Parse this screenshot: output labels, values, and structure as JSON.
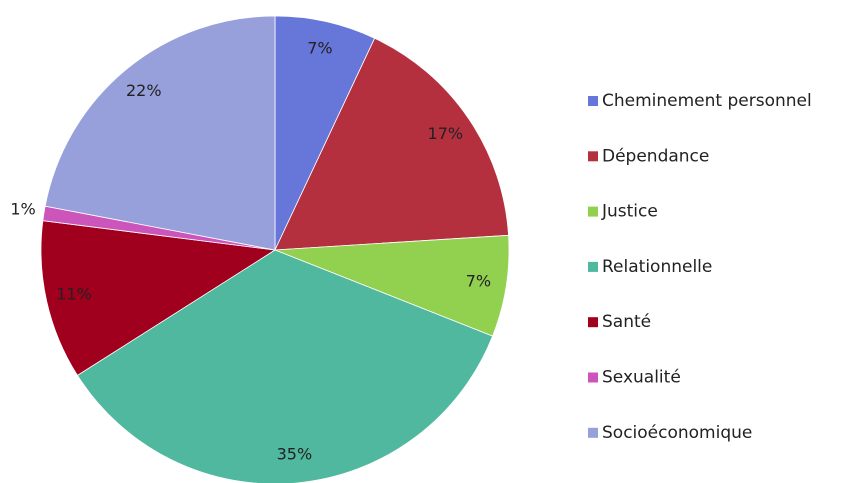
{
  "chart_data": {
    "type": "pie",
    "categories": [
      "Cheminement personnel",
      "Dépendance",
      "Justice",
      "Relationnelle",
      "Santé",
      "Sexualité",
      "Socioéconomique"
    ],
    "values": [
      7,
      17,
      7,
      35,
      11,
      1,
      22
    ],
    "value_labels": [
      "7%",
      "17%",
      "7%",
      "35%",
      "11%",
      "1%",
      "22%"
    ],
    "colors": [
      "#6677d9",
      "#b5303f",
      "#92d050",
      "#50b89e",
      "#a0001e",
      "#cc55bb",
      "#97a0db"
    ],
    "legend": "right"
  }
}
